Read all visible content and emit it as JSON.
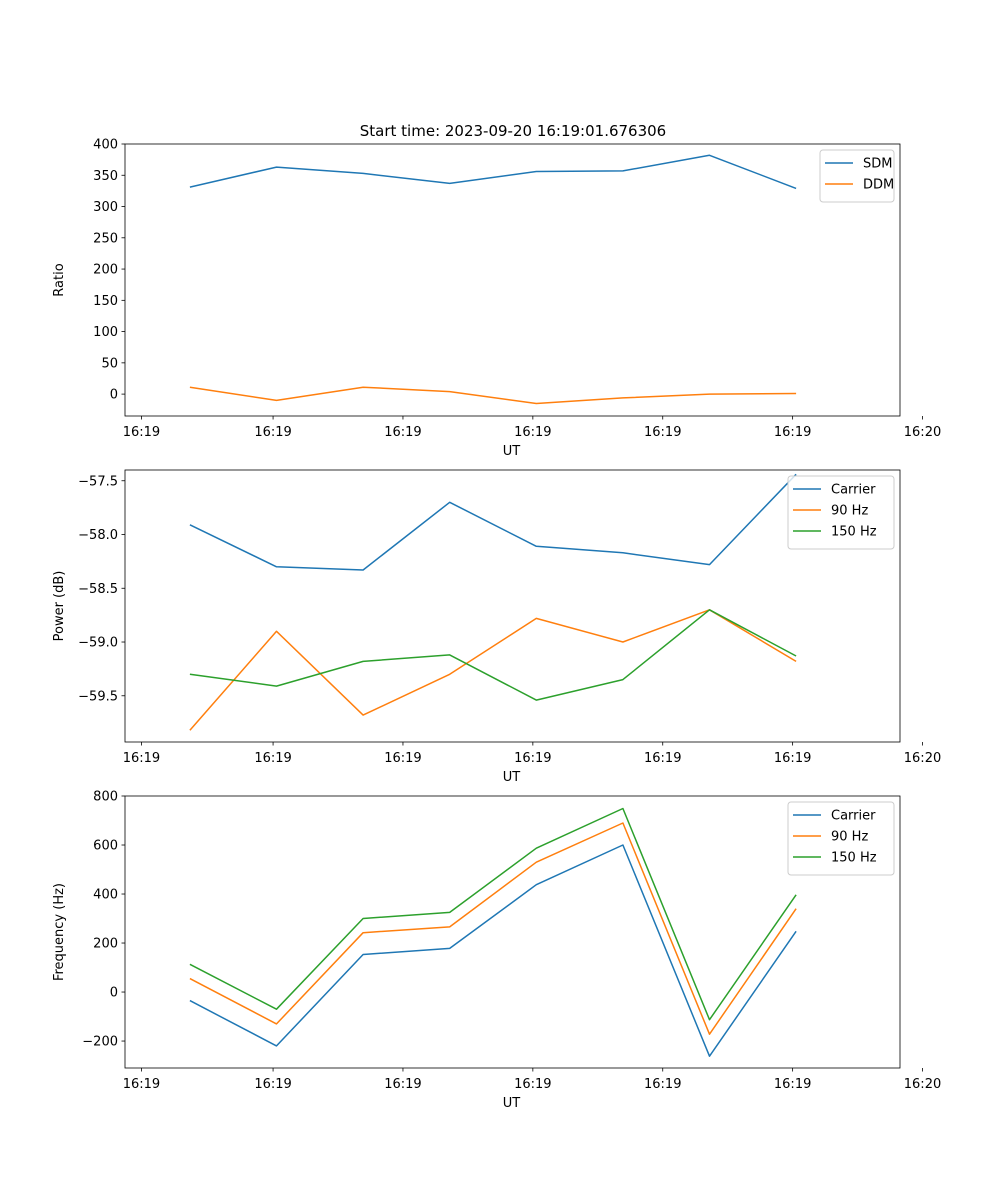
{
  "figure": {
    "title": "Start time: 2023-09-20 16:19:01.676306"
  },
  "colors": {
    "blue": "#1f77b4",
    "orange": "#ff7f0e",
    "green": "#2ca02c"
  },
  "chart_data": [
    {
      "type": "line",
      "title": "Start time: 2023-09-20 16:19:01.676306",
      "xlabel": "UT",
      "ylabel": "Ratio",
      "x": [
        1,
        2,
        3,
        4,
        5,
        6,
        7,
        8
      ],
      "xlim": [
        0.25,
        9.2
      ],
      "xticks": [
        0.44,
        1.96,
        3.46,
        4.96,
        6.46,
        7.96,
        9.46
      ],
      "xtick_labels": [
        "16:19",
        "16:19",
        "16:19",
        "16:19",
        "16:19",
        "16:19",
        "16:20"
      ],
      "ylim": [
        -35,
        400
      ],
      "yticks": [
        0,
        50,
        100,
        150,
        200,
        250,
        300,
        350,
        400
      ],
      "ytick_labels": [
        "0",
        "50",
        "100",
        "150",
        "200",
        "250",
        "300",
        "350",
        "400"
      ],
      "legend": "top-right",
      "series": [
        {
          "name": "SDM",
          "color": "#1f77b4",
          "values": [
            331,
            363,
            353,
            337,
            356,
            357,
            382,
            329
          ]
        },
        {
          "name": "DDM",
          "color": "#ff7f0e",
          "values": [
            11,
            -10,
            11,
            4,
            -15,
            -6,
            0,
            1
          ]
        }
      ]
    },
    {
      "type": "line",
      "title": "",
      "xlabel": "UT",
      "ylabel": "Power (dB)",
      "x": [
        1,
        2,
        3,
        4,
        5,
        6,
        7,
        8
      ],
      "xlim": [
        0.25,
        9.2
      ],
      "xticks": [
        0.44,
        1.96,
        3.46,
        4.96,
        6.46,
        7.96,
        9.46
      ],
      "xtick_labels": [
        "16:19",
        "16:19",
        "16:19",
        "16:19",
        "16:19",
        "16:19",
        "16:20"
      ],
      "ylim": [
        -59.93,
        -57.4
      ],
      "yticks": [
        -59.5,
        -59.0,
        -58.5,
        -58.0,
        -57.5
      ],
      "ytick_labels": [
        "−59.5",
        "−59.0",
        "−58.5",
        "−58.0",
        "−57.5"
      ],
      "legend": "top-right",
      "series": [
        {
          "name": "Carrier",
          "color": "#1f77b4",
          "values": [
            -57.91,
            -58.3,
            -58.33,
            -57.7,
            -58.11,
            -58.17,
            -58.28,
            -57.44
          ]
        },
        {
          "name": "90 Hz",
          "color": "#ff7f0e",
          "values": [
            -59.82,
            -58.9,
            -59.68,
            -59.3,
            -58.78,
            -59.0,
            -58.7,
            -59.18
          ]
        },
        {
          "name": "150 Hz",
          "color": "#2ca02c",
          "values": [
            -59.3,
            -59.41,
            -59.18,
            -59.12,
            -59.54,
            -59.35,
            -58.7,
            -59.13
          ]
        }
      ]
    },
    {
      "type": "line",
      "title": "",
      "xlabel": "UT",
      "ylabel": "Frequency (Hz)",
      "x": [
        1,
        2,
        3,
        4,
        5,
        6,
        7,
        8
      ],
      "xlim": [
        0.25,
        9.2
      ],
      "xticks": [
        0.44,
        1.96,
        3.46,
        4.96,
        6.46,
        7.96,
        9.46
      ],
      "xtick_labels": [
        "16:19",
        "16:19",
        "16:19",
        "16:19",
        "16:19",
        "16:19",
        "16:20"
      ],
      "ylim": [
        -310,
        800
      ],
      "yticks": [
        -200,
        0,
        200,
        400,
        600,
        800
      ],
      "ytick_labels": [
        "−200",
        "0",
        "200",
        "400",
        "600",
        "800"
      ],
      "legend": "top-right",
      "series": [
        {
          "name": "Carrier",
          "color": "#1f77b4",
          "values": [
            -35,
            -220,
            153,
            178,
            438,
            600,
            -262,
            248
          ]
        },
        {
          "name": "90 Hz",
          "color": "#ff7f0e",
          "values": [
            55,
            -130,
            242,
            266,
            530,
            690,
            -172,
            340
          ]
        },
        {
          "name": "150 Hz",
          "color": "#2ca02c",
          "values": [
            113,
            -70,
            300,
            325,
            587,
            749,
            -113,
            397
          ]
        }
      ]
    }
  ]
}
